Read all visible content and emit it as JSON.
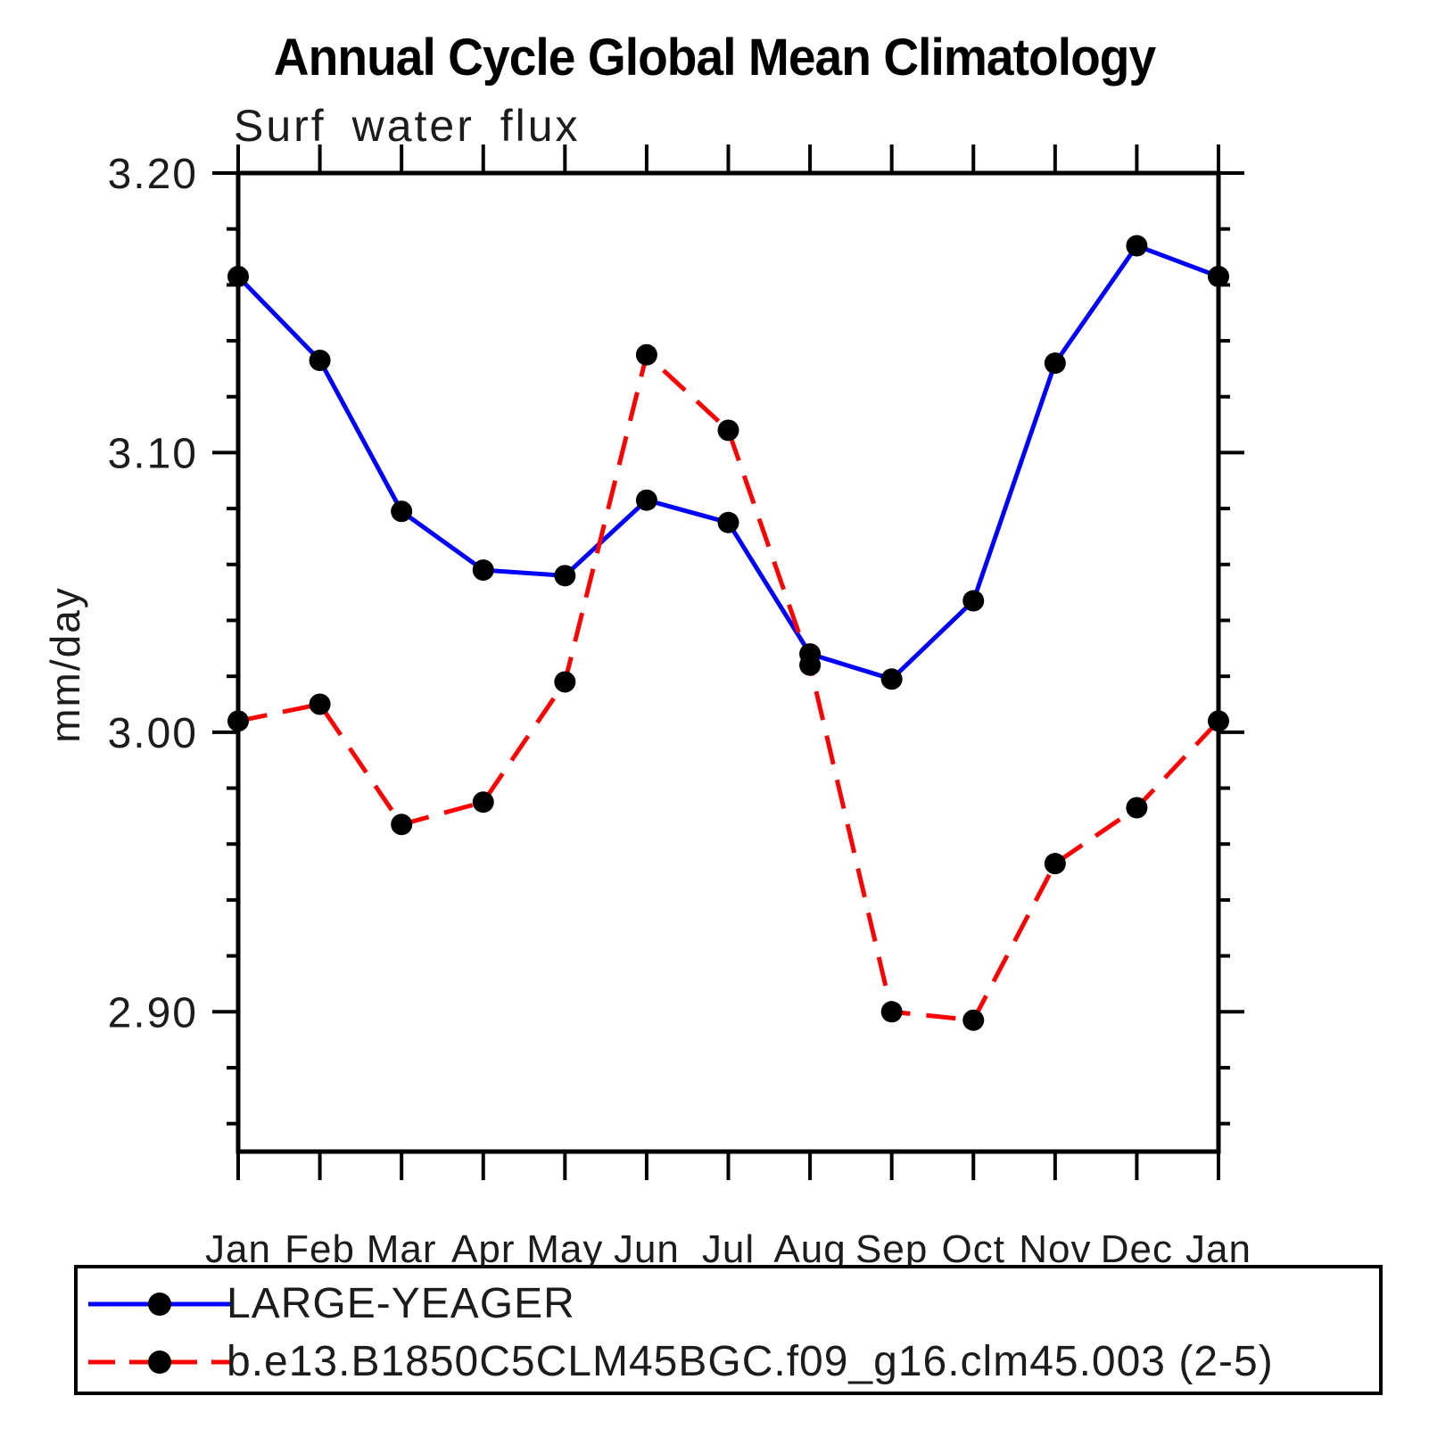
{
  "chart_data": {
    "type": "line",
    "title": "Annual Cycle Global Mean Climatology",
    "subtitle": "Surf water flux",
    "ylabel": "mm/day",
    "categories": [
      "Jan",
      "Feb",
      "Mar",
      "Apr",
      "May",
      "Jun",
      "Jul",
      "Aug",
      "Sep",
      "Oct",
      "Nov",
      "Dec",
      "Jan"
    ],
    "ylim": [
      2.85,
      3.2
    ],
    "yticks_major": [
      3.2,
      3.1,
      3.0,
      2.9
    ],
    "ytick_minor_step": 0.02,
    "ytick_label_decimals": 2,
    "grid": false,
    "legend_position": "bottom-left-box",
    "axis_color": "#000000",
    "marker_color": "#000000",
    "series": [
      {
        "name": "LARGE-YEAGER",
        "color": "#0000ff",
        "line_style": "solid",
        "marker": "circle",
        "values": [
          3.163,
          3.133,
          3.079,
          3.058,
          3.056,
          3.083,
          3.075,
          3.028,
          3.019,
          3.047,
          3.132,
          3.174,
          3.163
        ]
      },
      {
        "name": "b.e13.B1850C5CLM45BGC.f09_g16.clm45.003 (2-5)",
        "color": "#ff0000",
        "line_style": "dashed",
        "marker": "circle",
        "values": [
          3.004,
          3.01,
          2.967,
          2.975,
          3.018,
          3.135,
          3.108,
          3.024,
          2.9,
          2.897,
          2.953,
          2.973,
          3.004
        ]
      }
    ]
  }
}
